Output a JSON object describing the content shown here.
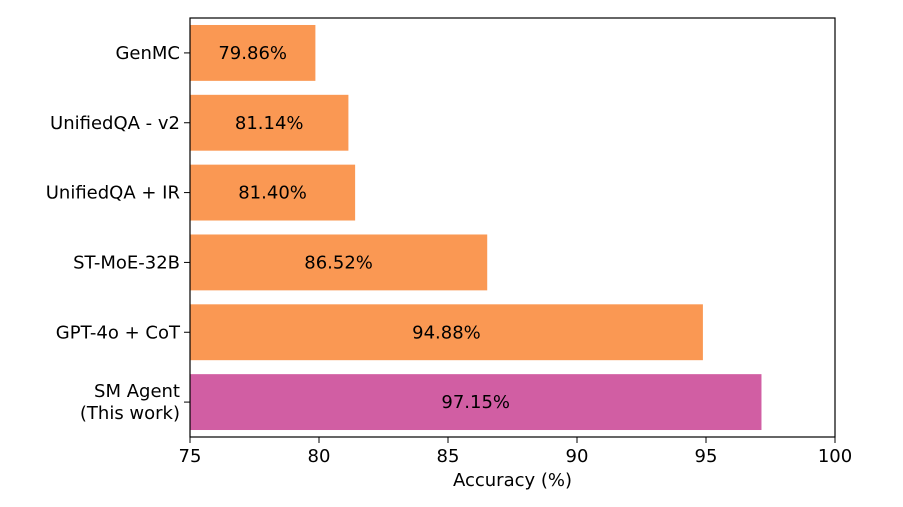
{
  "chart_data": {
    "type": "bar",
    "orientation": "horizontal",
    "categories": [
      "GenMC",
      "UnifiedQA - v2",
      "UnifiedQA + IR",
      "ST-MoE-32B",
      "GPT-4o + CoT",
      "SM Agent\n(This work)"
    ],
    "values": [
      79.86,
      81.14,
      81.4,
      86.52,
      94.88,
      97.15
    ],
    "value_labels": [
      "79.86%",
      "81.14%",
      "81.40%",
      "86.52%",
      "94.88%",
      "97.15%"
    ],
    "colors": [
      "#fa9853",
      "#fa9853",
      "#fa9853",
      "#fa9853",
      "#fa9853",
      "#d15ea3"
    ],
    "title": "",
    "xlabel": "Accuracy (%)",
    "ylabel": "",
    "xlim": [
      75,
      100
    ],
    "xticks": [
      75,
      80,
      85,
      90,
      95,
      100
    ],
    "grid": false,
    "legend": "none"
  }
}
